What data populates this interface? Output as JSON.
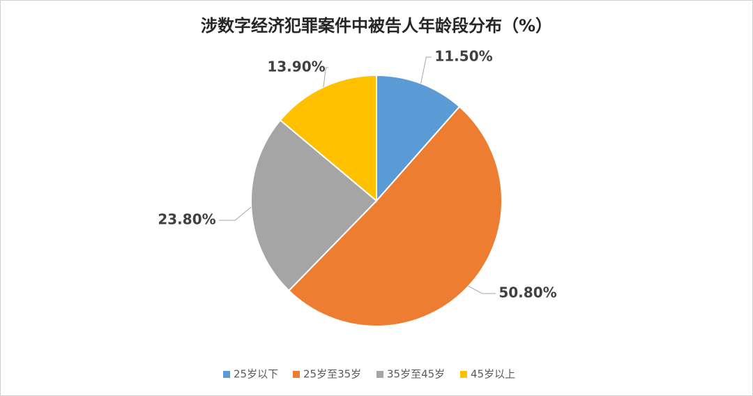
{
  "chart_data": {
    "type": "pie",
    "title": "涉数字经济犯罪案件中被告人年龄段分布（%）",
    "categories": [
      "25岁以下",
      "25岁至35岁",
      "35岁至45岁",
      "45岁以上"
    ],
    "values": [
      11.5,
      50.8,
      23.8,
      13.9
    ],
    "value_labels": [
      "11.50%",
      "50.80%",
      "23.80%",
      "13.90%"
    ],
    "colors": [
      "#5b9bd5",
      "#ed7d31",
      "#a5a5a5",
      "#ffc000"
    ],
    "legend": "bottom"
  }
}
